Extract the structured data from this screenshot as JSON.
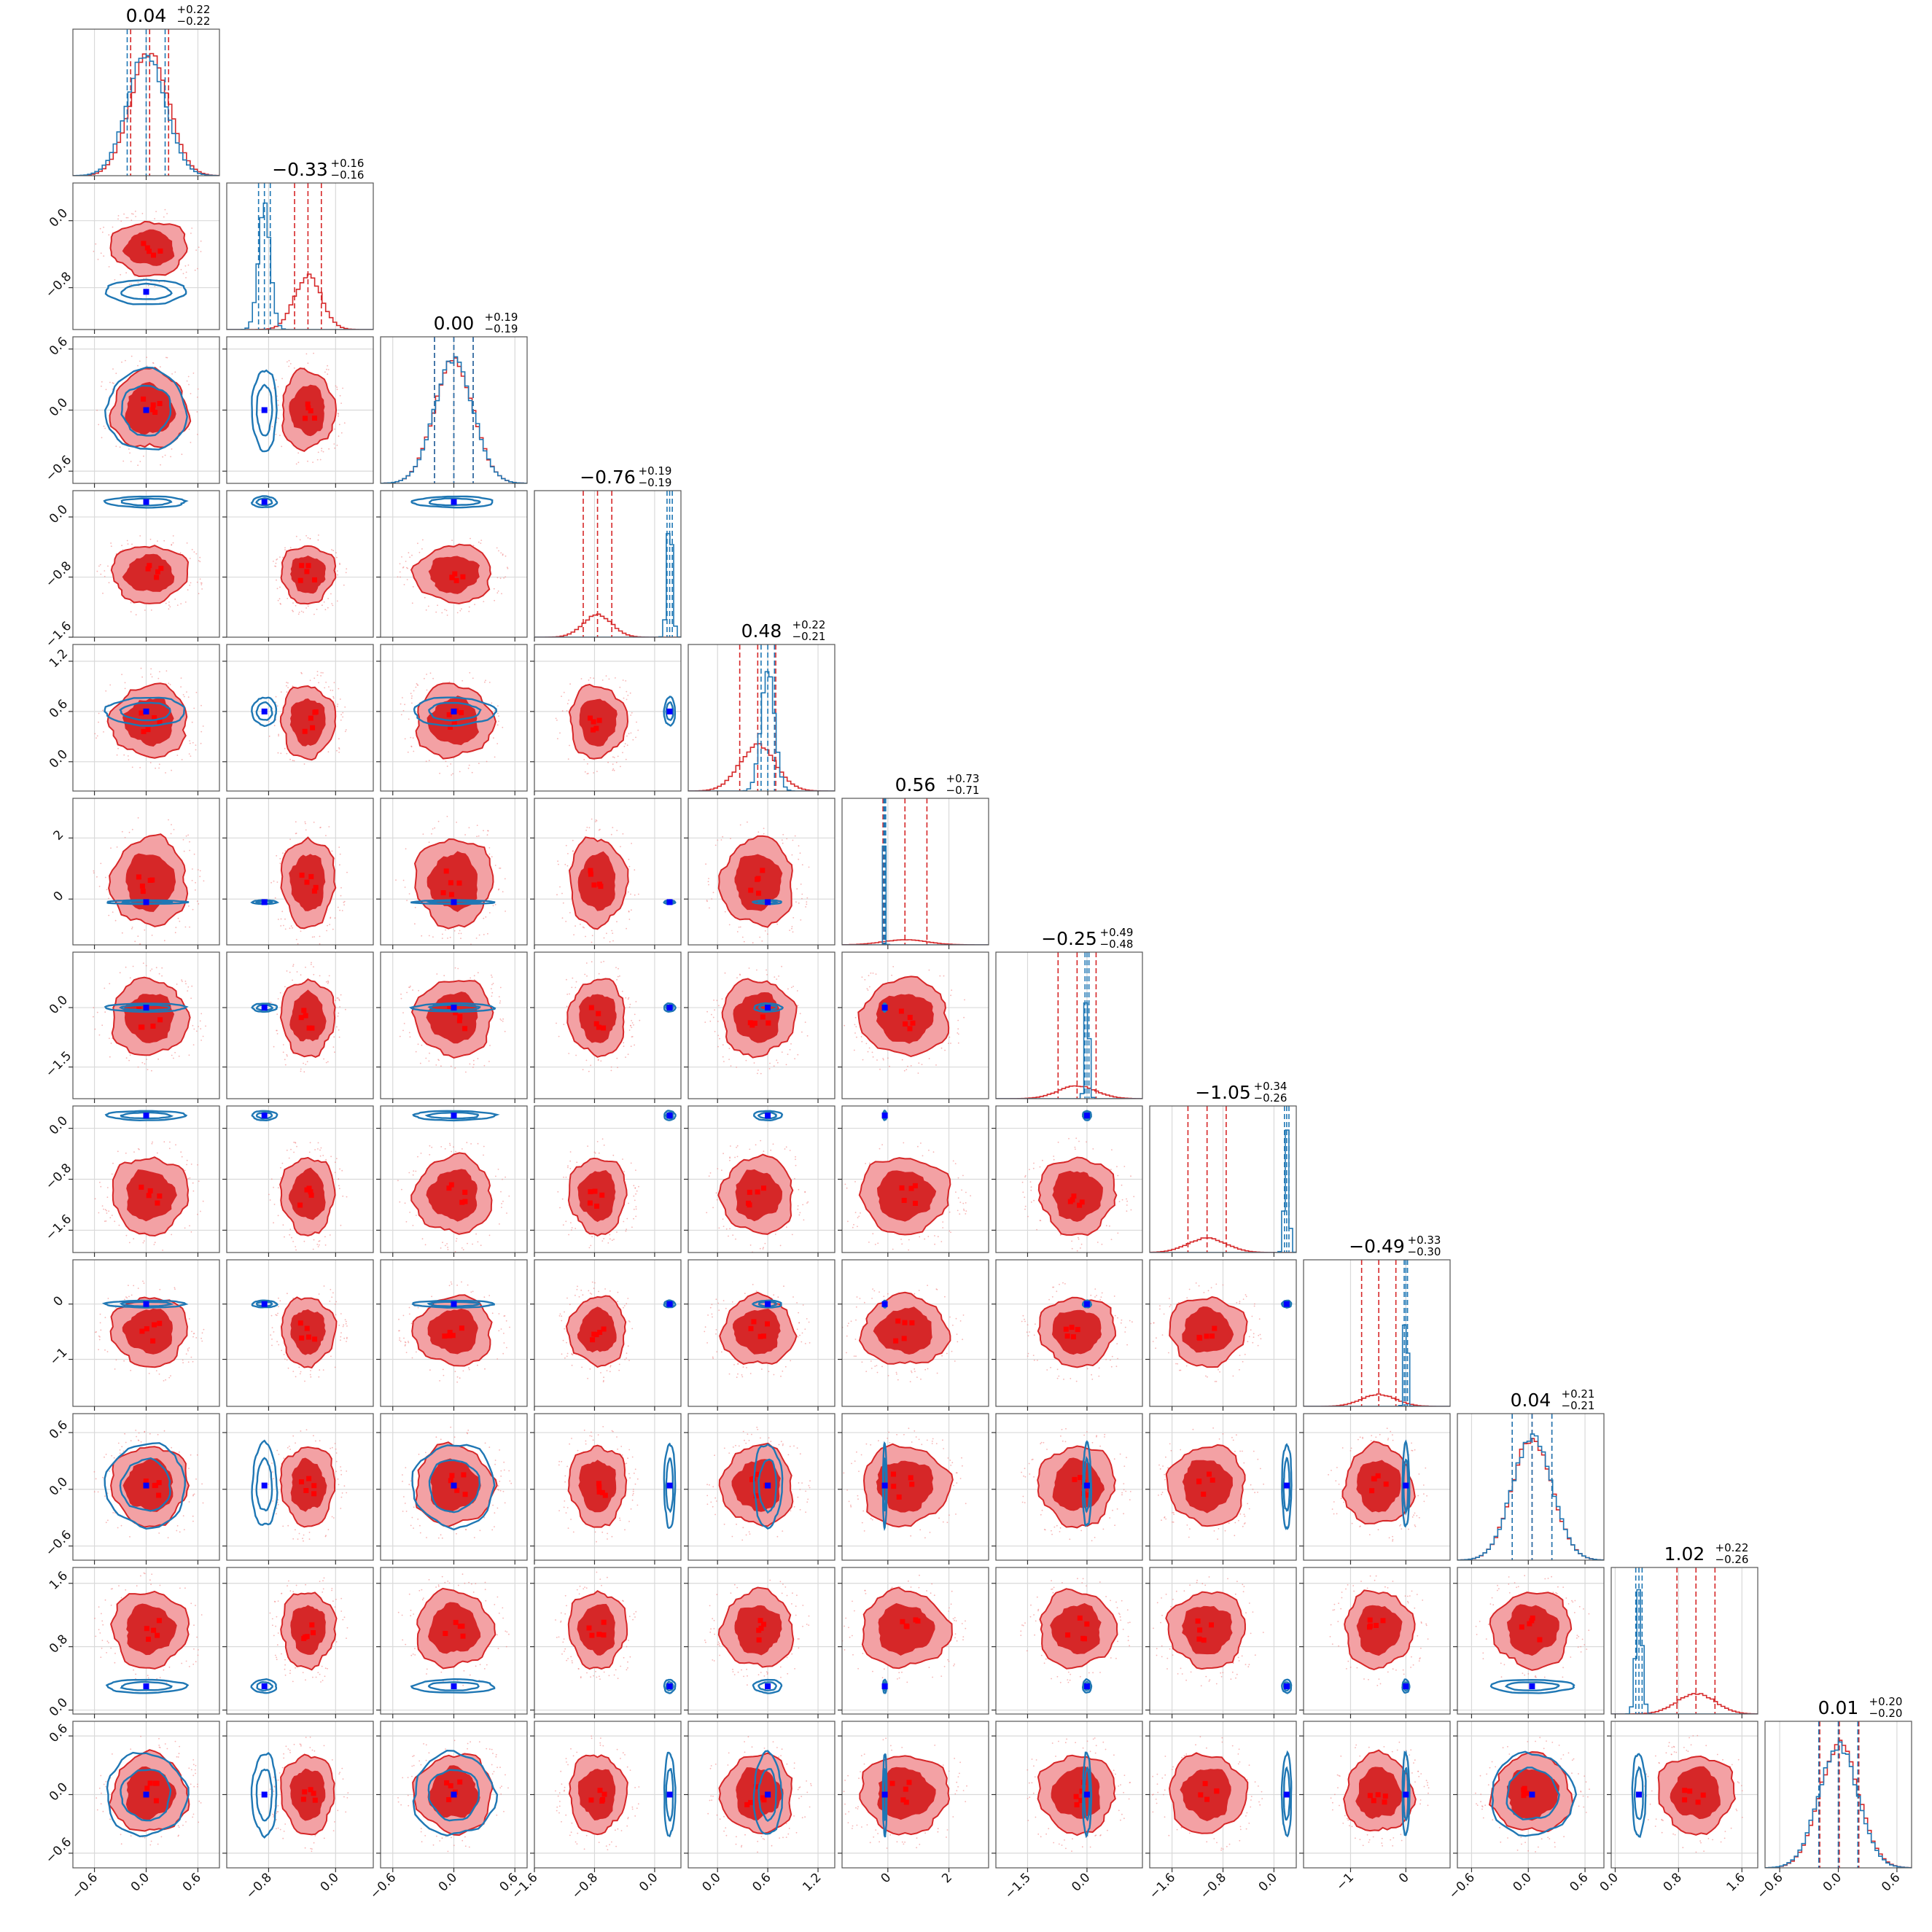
{
  "chart_data": {
    "type": "corner",
    "n_params": 12,
    "colors": {
      "red_fill_outer": "#f3a1a4",
      "red_fill_inner": "#d62728",
      "red_line": "#d62728",
      "blue_line": "#1f77b4",
      "blue_marker": "#0000ff",
      "red_marker": "#ff0000"
    },
    "titles": [
      {
        "median": "0.04",
        "plus": "+0.22",
        "minus": "−0.22"
      },
      {
        "median": "−0.33",
        "plus": "+0.16",
        "minus": "−0.16"
      },
      {
        "median": "0.00",
        "plus": "+0.19",
        "minus": "−0.19"
      },
      {
        "median": "−0.76",
        "plus": "+0.19",
        "minus": "−0.19"
      },
      {
        "median": "0.48",
        "plus": "+0.22",
        "minus": "−0.21"
      },
      {
        "median": "0.56",
        "plus": "+0.73",
        "minus": "−0.71"
      },
      {
        "median": "−0.25",
        "plus": "+0.49",
        "minus": "−0.48"
      },
      {
        "median": "−1.05",
        "plus": "+0.34",
        "minus": "−0.26"
      },
      {
        "median": "−0.49",
        "plus": "+0.33",
        "minus": "−0.30"
      },
      {
        "median": "0.04",
        "plus": "+0.21",
        "minus": "−0.21"
      },
      {
        "median": "1.02",
        "plus": "+0.22",
        "minus": "−0.26"
      },
      {
        "median": "0.01",
        "plus": "+0.20",
        "minus": "−0.20"
      }
    ],
    "params": [
      {
        "range": [
          -0.85,
          0.85
        ],
        "ticks": [
          -0.6,
          0.0,
          0.6
        ],
        "tick_labels": [
          "−0.6",
          "0.0",
          "0.6"
        ],
        "red": {
          "mu": 0.04,
          "sd": 0.22
        },
        "blue": {
          "mu": 0.0,
          "sd": 0.22
        }
      },
      {
        "range": [
          -1.3,
          0.45
        ],
        "ticks": [
          -0.8,
          0.0
        ],
        "tick_labels": [
          "−0.8",
          "0.0"
        ],
        "red": {
          "mu": -0.33,
          "sd": 0.16
        },
        "blue": {
          "mu": -0.85,
          "sd": 0.07
        }
      },
      {
        "range": [
          -0.72,
          0.72
        ],
        "ticks": [
          -0.6,
          0.0,
          0.6
        ],
        "tick_labels": [
          "−0.6",
          "0.0",
          "0.6"
        ],
        "red": {
          "mu": 0.0,
          "sd": 0.19
        },
        "blue": {
          "mu": 0.0,
          "sd": 0.19
        }
      },
      {
        "range": [
          -1.6,
          0.35
        ],
        "ticks": [
          -1.6,
          -0.8,
          0.0
        ],
        "tick_labels": [
          "−1.6",
          "−0.8",
          "0.0"
        ],
        "red": {
          "mu": -0.76,
          "sd": 0.19
        },
        "blue": {
          "mu": 0.2,
          "sd": 0.035
        }
      },
      {
        "range": [
          -0.35,
          1.4
        ],
        "ticks": [
          0.0,
          0.6,
          1.2
        ],
        "tick_labels": [
          "0.0",
          "0.6",
          "1.2"
        ],
        "red": {
          "mu": 0.48,
          "sd": 0.215
        },
        "blue": {
          "mu": 0.6,
          "sd": 0.08
        }
      },
      {
        "range": [
          -1.5,
          3.3
        ],
        "ticks": [
          0,
          2
        ],
        "tick_labels": [
          "0",
          "2"
        ],
        "red": {
          "mu": 0.56,
          "sd": 0.72
        },
        "blue": {
          "mu": -0.1,
          "sd": 0.03
        }
      },
      {
        "range": [
          -2.3,
          1.4
        ],
        "ticks": [
          -1.5,
          0.0
        ],
        "tick_labels": [
          "−1.5",
          "0.0"
        ],
        "red": {
          "mu": -0.25,
          "sd": 0.48
        },
        "blue": {
          "mu": 0.0,
          "sd": 0.05
        }
      },
      {
        "range": [
          -1.95,
          0.35
        ],
        "ticks": [
          -1.6,
          -0.8,
          0.0
        ],
        "tick_labels": [
          "−1.6",
          "−0.8",
          "0.0"
        ],
        "red": {
          "mu": -1.05,
          "sd": 0.3
        },
        "blue": {
          "mu": 0.2,
          "sd": 0.035
        }
      },
      {
        "range": [
          -1.85,
          0.8
        ],
        "ticks": [
          -1,
          0
        ],
        "tick_labels": [
          "−1",
          "0"
        ],
        "red": {
          "mu": -0.49,
          "sd": 0.31
        },
        "blue": {
          "mu": 0.0,
          "sd": 0.03
        }
      },
      {
        "range": [
          -0.75,
          0.8
        ],
        "ticks": [
          -0.6,
          0.0,
          0.6
        ],
        "tick_labels": [
          "−0.6",
          "0.0",
          "0.6"
        ],
        "red": {
          "mu": 0.04,
          "sd": 0.21
        },
        "blue": {
          "mu": 0.04,
          "sd": 0.21
        }
      },
      {
        "range": [
          -0.05,
          1.8
        ],
        "ticks": [
          0.0,
          0.8,
          1.6
        ],
        "tick_labels": [
          "0.0",
          "0.8",
          "1.6"
        ],
        "red": {
          "mu": 1.02,
          "sd": 0.24
        },
        "blue": {
          "mu": 0.3,
          "sd": 0.04
        }
      },
      {
        "range": [
          -0.75,
          0.75
        ],
        "ticks": [
          -0.6,
          0.0,
          0.6
        ],
        "tick_labels": [
          "−0.6",
          "0.0",
          "0.6"
        ],
        "red": {
          "mu": 0.01,
          "sd": 0.2
        },
        "blue": {
          "mu": 0.0,
          "sd": 0.2
        }
      }
    ]
  }
}
